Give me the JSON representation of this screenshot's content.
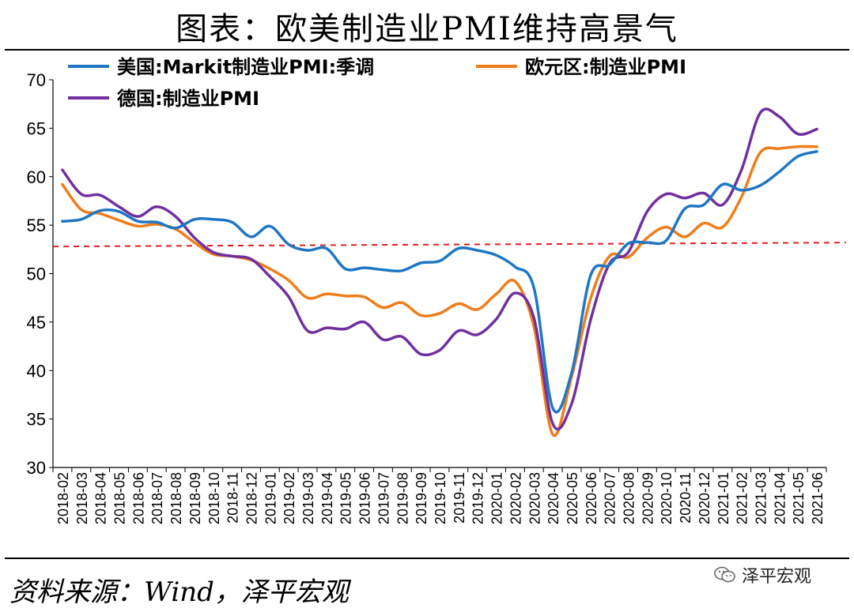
{
  "header": {
    "title": "图表：欧美制造业PMI维持高景气"
  },
  "footer": {
    "source": "资料来源：Wind，泽平宏观",
    "brand": "泽平宏观"
  },
  "chart_data": {
    "type": "line",
    "title": "图表：欧美制造业PMI维持高景气",
    "xlabel": "",
    "ylabel": "",
    "ylim": [
      30,
      70
    ],
    "yticks": [
      30,
      35,
      40,
      45,
      50,
      55,
      60,
      65,
      70
    ],
    "categories": [
      "2018-02",
      "2018-03",
      "2018-04",
      "2018-05",
      "2018-06",
      "2018-07",
      "2018-08",
      "2018-09",
      "2018-10",
      "2018-11",
      "2018-12",
      "2019-01",
      "2019-02",
      "2019-03",
      "2019-04",
      "2019-05",
      "2019-06",
      "2019-07",
      "2019-08",
      "2019-09",
      "2019-10",
      "2019-11",
      "2019-12",
      "2020-01",
      "2020-02",
      "2020-03",
      "2020-04",
      "2020-05",
      "2020-06",
      "2020-07",
      "2020-08",
      "2020-09",
      "2020-10",
      "2020-11",
      "2020-12",
      "2021-01",
      "2021-02",
      "2021-03",
      "2021-04",
      "2021-05",
      "2021-06"
    ],
    "x_tick_labels": [
      "2018-02",
      "2018-03",
      "2018-04",
      "2018-05",
      "2018-06",
      "2018-07",
      "2018-08",
      "2018-09",
      "2018-10",
      "2018-11",
      "2018-12",
      "2019-01",
      "2019-02",
      "2019-03",
      "2019-04",
      "2019-05",
      "2019-06",
      "2019-07",
      "2019-08",
      "2019-09",
      "2019-10",
      "2019-11",
      "2019-12",
      "2020-01",
      "2020-02",
      "2020-03",
      "2020-04",
      "2020-05",
      "2020-06",
      "2020-07",
      "2020-08",
      "2020-09",
      "2020-10",
      "2020-11",
      "2020-12",
      "2021-01",
      "2021-02",
      "2021-03",
      "2021-04",
      "2021-05",
      "2021-06"
    ],
    "series": [
      {
        "name": "美国:Markit制造业PMI:季调",
        "color": "#1f77c4",
        "values": [
          55.4,
          55.6,
          56.5,
          56.4,
          55.4,
          55.3,
          54.7,
          55.6,
          55.6,
          55.3,
          53.8,
          54.9,
          53.0,
          52.4,
          52.6,
          50.5,
          50.6,
          50.4,
          50.3,
          51.1,
          51.3,
          52.6,
          52.4,
          51.9,
          50.7,
          48.5,
          36.1,
          39.8,
          49.8,
          50.9,
          53.1,
          53.2,
          53.4,
          56.7,
          57.1,
          59.2,
          58.6,
          59.1,
          60.5,
          62.1,
          62.6
        ]
      },
      {
        "name": "欧元区:制造业PMI",
        "color": "#f07d1a",
        "values": [
          59.2,
          56.6,
          56.2,
          55.5,
          54.9,
          55.1,
          54.6,
          53.2,
          52.0,
          51.8,
          51.4,
          50.5,
          49.3,
          47.5,
          47.9,
          47.7,
          47.6,
          46.5,
          47.0,
          45.7,
          45.9,
          46.9,
          46.3,
          47.9,
          49.2,
          44.5,
          33.4,
          39.4,
          47.4,
          51.8,
          51.7,
          53.7,
          54.8,
          53.8,
          55.2,
          54.8,
          57.9,
          62.5,
          62.9,
          63.1,
          63.1
        ]
      },
      {
        "name": "德国:制造业PMI",
        "color": "#7030a0",
        "values": [
          60.7,
          58.2,
          58.1,
          56.9,
          55.9,
          56.9,
          55.9,
          53.7,
          52.2,
          51.8,
          51.5,
          49.7,
          47.6,
          44.1,
          44.4,
          44.3,
          45.0,
          43.2,
          43.5,
          41.7,
          42.1,
          44.1,
          43.7,
          45.3,
          48.0,
          45.4,
          34.5,
          36.6,
          45.2,
          51.0,
          52.2,
          56.4,
          58.2,
          57.8,
          58.3,
          57.1,
          60.7,
          66.6,
          66.2,
          64.4,
          64.9
        ]
      }
    ],
    "reference_line": {
      "y_start": 52.8,
      "y_end": 53.2,
      "color": "#e02020",
      "style": "dashed"
    },
    "legend": {
      "items": [
        "美国:Markit制造业PMI:季调",
        "欧元区:制造业PMI",
        "德国:制造业PMI"
      ],
      "placement": "top"
    },
    "grid": false
  }
}
